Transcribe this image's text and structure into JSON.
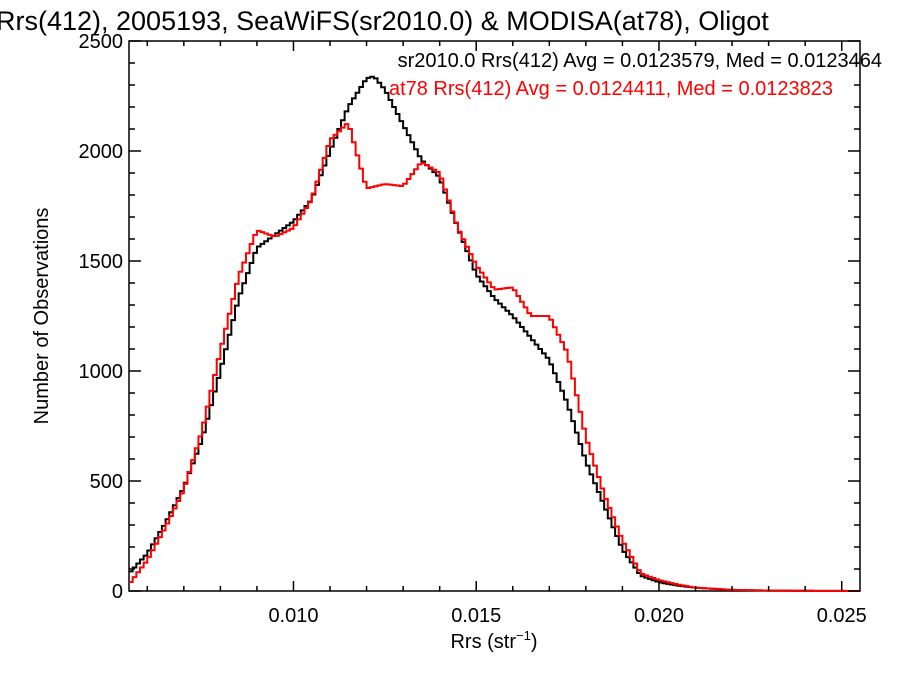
{
  "chart_data": {
    "type": "line",
    "title": "Rrs(412), 2005193, SeaWiFS(sr2010.0) & MODISA(at78), Oligot",
    "xlabel": "Rrs (str",
    "xlabel_sup": "−1",
    "xlabel_close": ")",
    "ylabel": "Number of Observations",
    "xlim": [
      0.0055,
      0.0255
    ],
    "ylim": [
      0,
      2500
    ],
    "xticks": [
      0.01,
      0.015,
      0.02,
      0.025
    ],
    "xtick_labels": [
      "0.010",
      "0.015",
      "0.020",
      "0.025"
    ],
    "yticks": [
      0,
      500,
      1000,
      1500,
      2000,
      2500
    ],
    "ytick_labels": [
      "0",
      "500",
      "1000",
      "1500",
      "2000",
      "2500"
    ],
    "grid": false,
    "legend_position": "top-right",
    "series": [
      {
        "name": "sr2010.0 Rrs(412) Avg = 0.0123579, Med = 0.0123464",
        "color": "#000000",
        "x": [
          0.0055,
          0.006,
          0.0065,
          0.007,
          0.0075,
          0.008,
          0.0085,
          0.009,
          0.0095,
          0.01,
          0.0105,
          0.011,
          0.0115,
          0.012,
          0.0122,
          0.0125,
          0.013,
          0.0135,
          0.014,
          0.0145,
          0.015,
          0.0155,
          0.016,
          0.0165,
          0.017,
          0.0175,
          0.018,
          0.0185,
          0.019,
          0.0195,
          0.02,
          0.0205,
          0.021,
          0.0215,
          0.022,
          0.023,
          0.024,
          0.0255
        ],
        "y": [
          80,
          170,
          310,
          470,
          690,
          1000,
          1330,
          1560,
          1620,
          1680,
          1780,
          2000,
          2200,
          2330,
          2340,
          2280,
          2120,
          1960,
          1880,
          1650,
          1440,
          1330,
          1250,
          1150,
          1050,
          850,
          590,
          390,
          190,
          70,
          40,
          25,
          15,
          10,
          5,
          2,
          1,
          0
        ]
      },
      {
        "name": "at78 Rrs(412) Avg = 0.0124411, Med = 0.0123823",
        "color": "#ff0000",
        "x": [
          0.0055,
          0.006,
          0.0065,
          0.007,
          0.0075,
          0.008,
          0.0085,
          0.009,
          0.0095,
          0.01,
          0.0105,
          0.011,
          0.0115,
          0.012,
          0.0125,
          0.013,
          0.0135,
          0.014,
          0.0145,
          0.015,
          0.0155,
          0.016,
          0.0165,
          0.017,
          0.0175,
          0.018,
          0.0185,
          0.019,
          0.0195,
          0.02,
          0.0205,
          0.021,
          0.0215,
          0.022,
          0.023,
          0.024,
          0.0255
        ],
        "y": [
          30,
          140,
          290,
          460,
          730,
          1090,
          1430,
          1640,
          1610,
          1650,
          1780,
          2050,
          2130,
          1830,
          1850,
          1840,
          1950,
          1900,
          1650,
          1480,
          1370,
          1380,
          1250,
          1250,
          1080,
          700,
          440,
          230,
          80,
          50,
          30,
          15,
          10,
          5,
          2,
          1,
          0
        ]
      }
    ]
  }
}
